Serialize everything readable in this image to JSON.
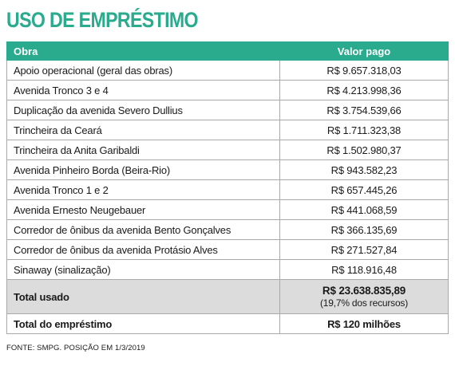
{
  "title": "USO DE EMPRÉSTIMO",
  "header": {
    "obra": "Obra",
    "valor": "Valor pago"
  },
  "rows": [
    {
      "obra": "Apoio operacional (geral das obras)",
      "valor": "R$ 9.657.318,03"
    },
    {
      "obra": "Avenida Tronco 3 e 4",
      "valor": "R$ 4.213.998,36"
    },
    {
      "obra": "Duplicação da avenida Severo Dullius",
      "valor": "R$ 3.754.539,66"
    },
    {
      "obra": "Trincheira da Ceará",
      "valor": "R$ 1.711.323,38"
    },
    {
      "obra": "Trincheira da Anita Garibaldi",
      "valor": "R$ 1.502.980,37"
    },
    {
      "obra": "Avenida Pinheiro Borda (Beira-Rio)",
      "valor": "R$ 943.582,23"
    },
    {
      "obra": "Avenida Tronco 1 e 2",
      "valor": "R$ 657.445,26"
    },
    {
      "obra": "Avenida Ernesto Neugebauer",
      "valor": "R$ 441.068,59"
    },
    {
      "obra": "Corredor de ônibus da avenida Bento Gonçalves",
      "valor": "R$ 366.135,69"
    },
    {
      "obra": "Corredor de ônibus da avenida Protásio Alves",
      "valor": "R$ 271.527,84"
    },
    {
      "obra": "Sinaway (sinalização)",
      "valor": "R$ 118.916,48"
    }
  ],
  "total_usado": {
    "label": "Total usado",
    "valor": "R$ 23.638.835,89",
    "nota": "(19,7% dos recursos)"
  },
  "total_emprestimo": {
    "label": "Total do empréstimo",
    "valor": "R$ 120 milhões"
  },
  "source": "FONTE: SMPG. POSIÇÃO EM 1/3/2019",
  "colors": {
    "accent": "#2aab8e",
    "total_bg": "#dcdcdc",
    "border": "#a9a9a9"
  }
}
